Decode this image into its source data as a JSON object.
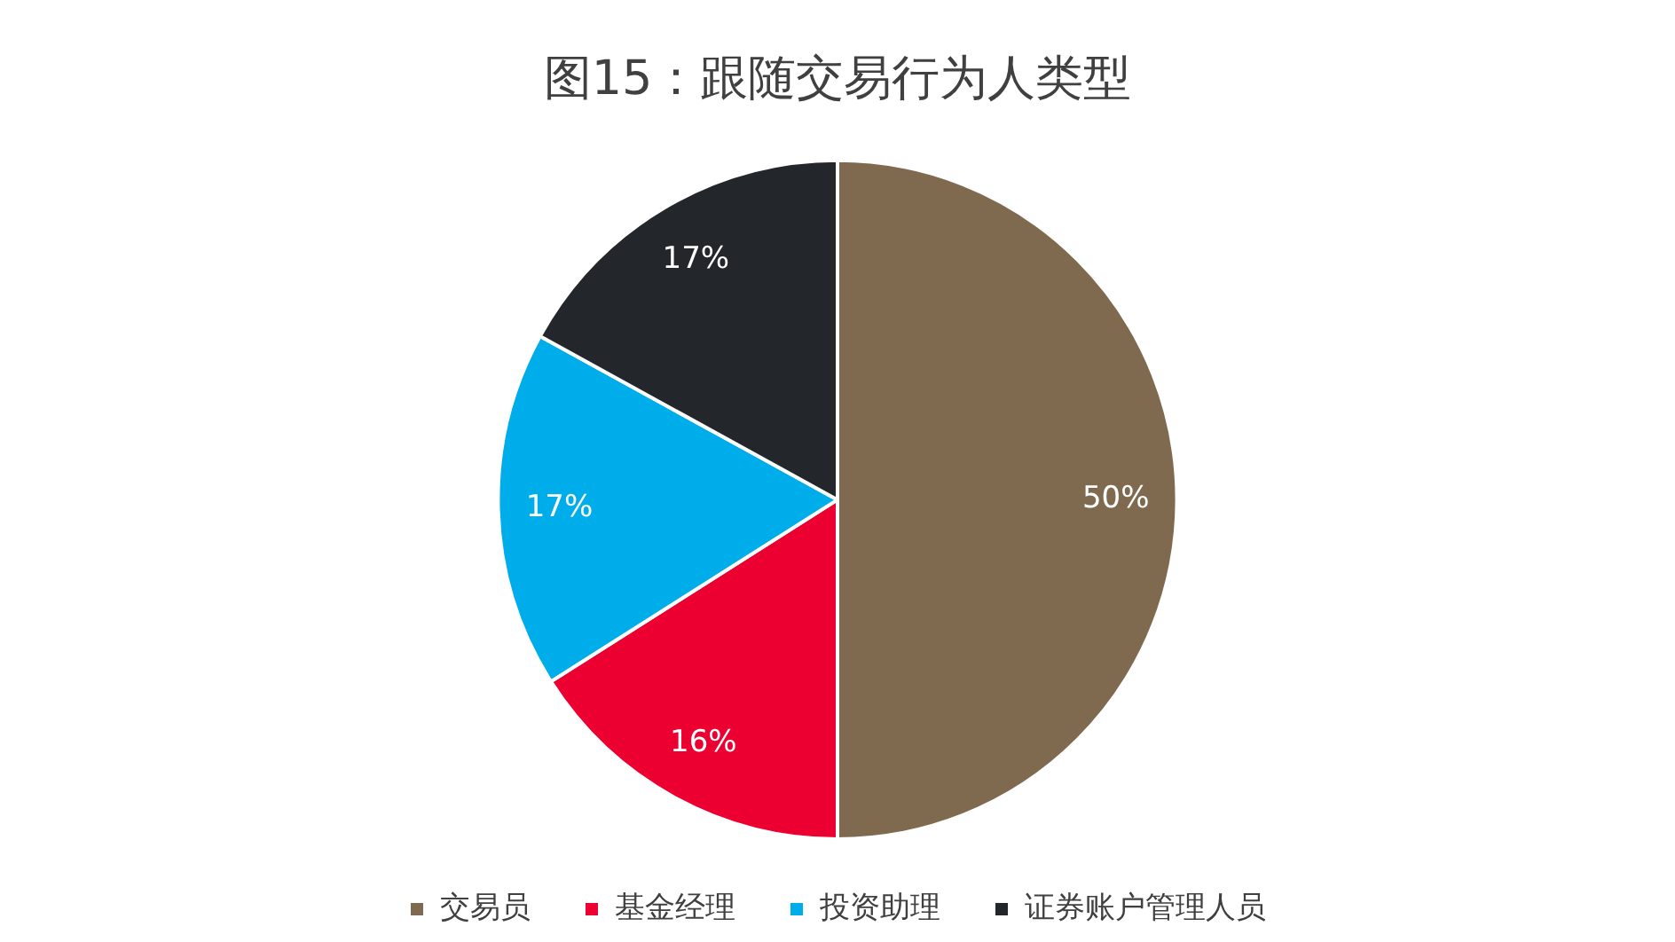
{
  "chart_data": {
    "type": "pie",
    "title": "图15：跟随交易行为人类型",
    "categories": [
      "交易员",
      "基金经理",
      "投资助理",
      "证券账户管理人员"
    ],
    "values": [
      50,
      16,
      17,
      17
    ],
    "colors": [
      "#7f6a4f",
      "#ec0032",
      "#00adeb",
      "#23272b"
    ],
    "value_labels": [
      "50%",
      "16%",
      "17%",
      "17%"
    ],
    "legend": "bottom"
  }
}
